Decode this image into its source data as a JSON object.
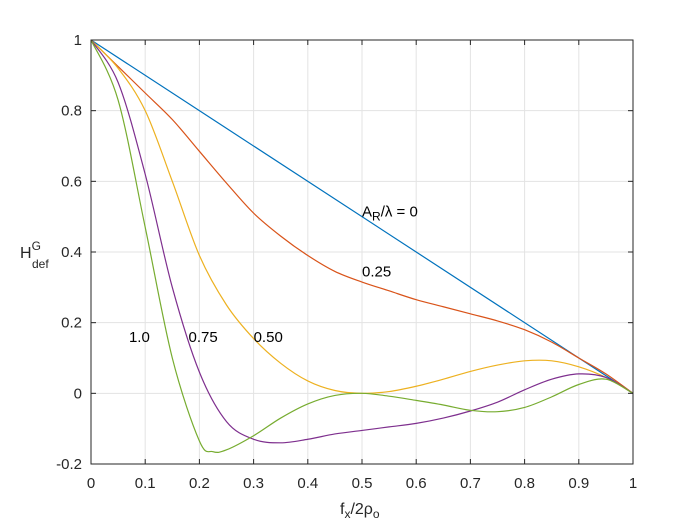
{
  "chart_data": {
    "type": "line",
    "title": "",
    "xlabel": {
      "main": "f",
      "sub1": "x",
      "mid": "/2ρ",
      "sub2": "o"
    },
    "ylabel": {
      "main": "H",
      "sup": "G",
      "sub": "def"
    },
    "xlim": [
      0,
      1
    ],
    "ylim": [
      -0.2,
      1
    ],
    "xticks": [
      0,
      0.1,
      0.2,
      0.3,
      0.4,
      0.5,
      0.6,
      0.7,
      0.8,
      0.9,
      1
    ],
    "xtick_labels": [
      "0",
      "0.1",
      "0.2",
      "0.3",
      "0.4",
      "0.5",
      "0.6",
      "0.7",
      "0.8",
      "0.9",
      "1"
    ],
    "yticks": [
      -0.2,
      0,
      0.2,
      0.4,
      0.6,
      0.8,
      1
    ],
    "ytick_labels": [
      "-0.2",
      "0",
      "0.2",
      "0.4",
      "0.6",
      "0.8",
      "1"
    ],
    "grid": true,
    "box": true,
    "legend": "none",
    "series": [
      {
        "color": "#0072BD",
        "x": [
          0,
          1
        ],
        "y": [
          1,
          0
        ]
      },
      {
        "color": "#D95319",
        "x": [
          0,
          0.05,
          0.1,
          0.15,
          0.2,
          0.25,
          0.3,
          0.35,
          0.4,
          0.45,
          0.5,
          0.55,
          0.6,
          0.65,
          0.7,
          0.75,
          0.8,
          0.85,
          0.9,
          0.95,
          1
        ],
        "y": [
          1,
          0.925,
          0.85,
          0.775,
          0.685,
          0.595,
          0.51,
          0.445,
          0.39,
          0.345,
          0.315,
          0.29,
          0.265,
          0.245,
          0.225,
          0.205,
          0.18,
          0.145,
          0.1,
          0.055,
          0
        ]
      },
      {
        "color": "#EDB120",
        "x": [
          0,
          0.05,
          0.1,
          0.15,
          0.2,
          0.25,
          0.3,
          0.35,
          0.4,
          0.45,
          0.5,
          0.55,
          0.6,
          0.65,
          0.7,
          0.75,
          0.8,
          0.85,
          0.9,
          0.95,
          1
        ],
        "y": [
          1,
          0.92,
          0.8,
          0.6,
          0.39,
          0.25,
          0.155,
          0.085,
          0.035,
          0.008,
          0,
          0.005,
          0.02,
          0.04,
          0.062,
          0.08,
          0.092,
          0.092,
          0.075,
          0.045,
          0
        ]
      },
      {
        "color": "#7E2F8E",
        "x": [
          0,
          0.05,
          0.1,
          0.15,
          0.2,
          0.25,
          0.3,
          0.35,
          0.4,
          0.45,
          0.5,
          0.55,
          0.6,
          0.65,
          0.7,
          0.75,
          0.8,
          0.85,
          0.9,
          0.95,
          1
        ],
        "y": [
          1,
          0.88,
          0.62,
          0.3,
          0.06,
          -0.08,
          -0.13,
          -0.14,
          -0.13,
          -0.115,
          -0.105,
          -0.095,
          -0.085,
          -0.07,
          -0.05,
          -0.025,
          0.01,
          0.04,
          0.055,
          0.045,
          0
        ]
      },
      {
        "color": "#77AC30",
        "x": [
          0,
          0.05,
          0.1,
          0.15,
          0.2,
          0.225,
          0.25,
          0.3,
          0.35,
          0.4,
          0.45,
          0.5,
          0.55,
          0.6,
          0.65,
          0.7,
          0.75,
          0.8,
          0.85,
          0.9,
          0.95,
          1
        ],
        "y": [
          1,
          0.83,
          0.47,
          0.1,
          -0.135,
          -0.165,
          -0.16,
          -0.12,
          -0.07,
          -0.03,
          -0.006,
          0,
          -0.008,
          -0.02,
          -0.033,
          -0.048,
          -0.052,
          -0.04,
          -0.01,
          0.025,
          0.04,
          0
        ]
      }
    ],
    "annotations": [
      {
        "label": "A",
        "sub": "R",
        "rest": "/λ = 0",
        "x": 0.5,
        "y": 0.5
      },
      {
        "label": "0.25",
        "x": 0.5,
        "y": 0.33
      },
      {
        "label": "1.0",
        "x": 0.07,
        "y": 0.145
      },
      {
        "label": "0.75",
        "x": 0.18,
        "y": 0.145
      },
      {
        "label": "0.50",
        "x": 0.3,
        "y": 0.145
      }
    ]
  }
}
